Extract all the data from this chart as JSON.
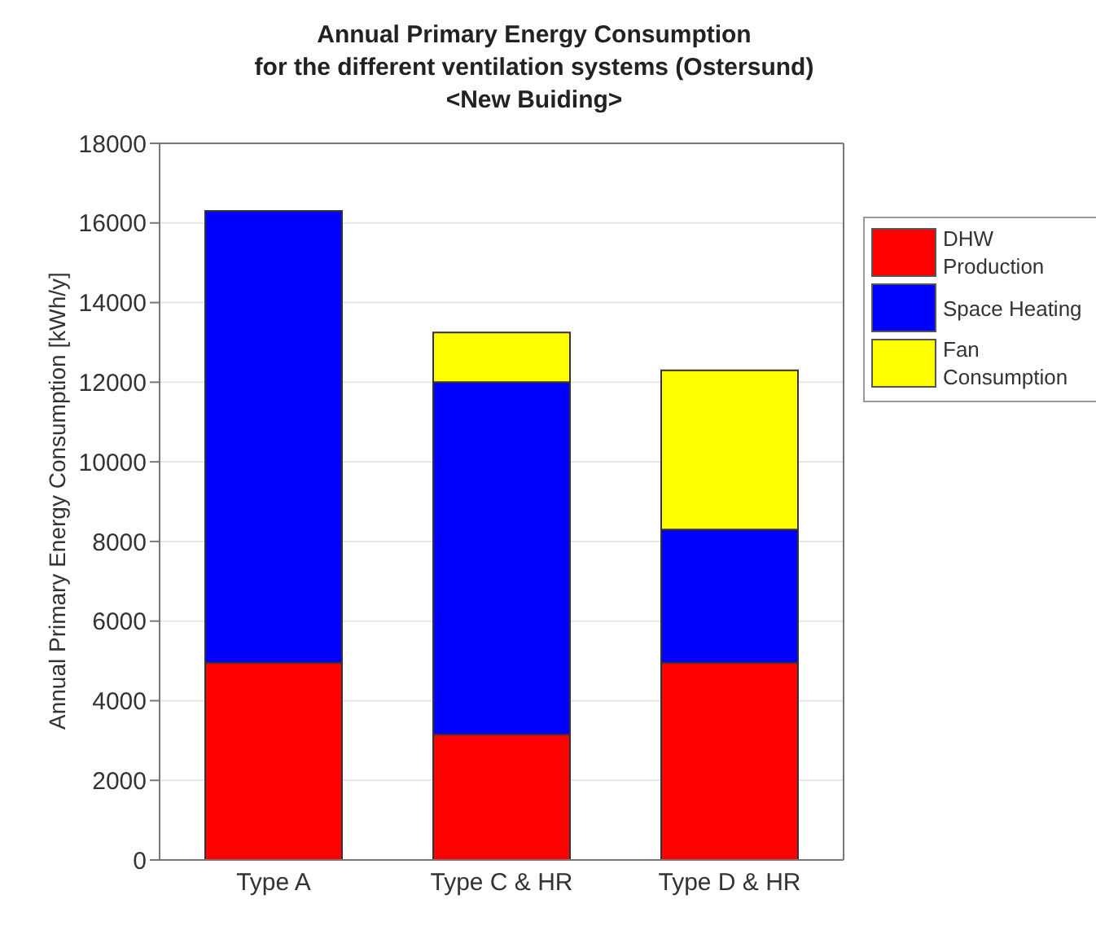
{
  "chart_data": {
    "type": "bar",
    "title": "Annual Primary Energy Consumption\nfor the different ventilation systems (Ostersund)\n<New Buiding>",
    "ylabel": "Annual Primary Energy Consumption [kWh/y]",
    "categories": [
      "Type A",
      "Type C & HR",
      "Type D & HR"
    ],
    "stacked": true,
    "series": [
      {
        "name": "DHW Production",
        "color": "#ff0000",
        "values": [
          4950,
          3150,
          4950
        ]
      },
      {
        "name": "Space Heating",
        "color": "#0000ff",
        "values": [
          11350,
          8850,
          3350
        ]
      },
      {
        "name": "Fan Consumption",
        "color": "#ffff00",
        "values": [
          0,
          1250,
          4000
        ]
      }
    ],
    "ylim": [
      0,
      18000
    ],
    "yticks": [
      0,
      2000,
      4000,
      6000,
      8000,
      10000,
      12000,
      14000,
      16000,
      18000
    ],
    "grid": "y",
    "legend": "top right"
  }
}
